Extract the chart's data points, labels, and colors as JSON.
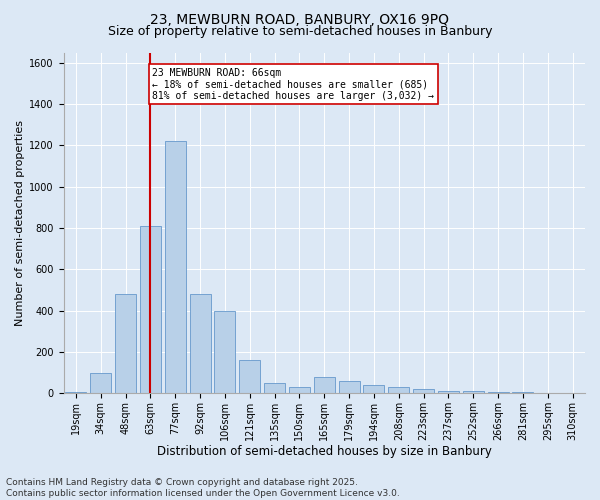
{
  "title1": "23, MEWBURN ROAD, BANBURY, OX16 9PQ",
  "title2": "Size of property relative to semi-detached houses in Banbury",
  "xlabel": "Distribution of semi-detached houses by size in Banbury",
  "ylabel": "Number of semi-detached properties",
  "categories": [
    "19sqm",
    "34sqm",
    "48sqm",
    "63sqm",
    "77sqm",
    "92sqm",
    "106sqm",
    "121sqm",
    "135sqm",
    "150sqm",
    "165sqm",
    "179sqm",
    "194sqm",
    "208sqm",
    "223sqm",
    "237sqm",
    "252sqm",
    "266sqm",
    "281sqm",
    "295sqm",
    "310sqm"
  ],
  "values": [
    5,
    100,
    480,
    810,
    1220,
    480,
    400,
    160,
    50,
    30,
    80,
    60,
    40,
    30,
    20,
    10,
    10,
    5,
    5,
    3,
    2
  ],
  "bar_color": "#b8d0e8",
  "bar_edge_color": "#6699cc",
  "vline_x_index": 3,
  "vline_color": "#cc0000",
  "annotation_text": "23 MEWBURN ROAD: 66sqm\n← 18% of semi-detached houses are smaller (685)\n81% of semi-detached houses are larger (3,032) →",
  "annotation_box_color": "#ffffff",
  "annotation_box_edge": "#cc0000",
  "ylim": [
    0,
    1650
  ],
  "yticks": [
    0,
    200,
    400,
    600,
    800,
    1000,
    1200,
    1400,
    1600
  ],
  "footnote": "Contains HM Land Registry data © Crown copyright and database right 2025.\nContains public sector information licensed under the Open Government Licence v3.0.",
  "background_color": "#dce8f5",
  "plot_bg_color": "#dce8f5",
  "title1_fontsize": 10,
  "title2_fontsize": 9,
  "xlabel_fontsize": 8.5,
  "ylabel_fontsize": 8,
  "tick_fontsize": 7,
  "footnote_fontsize": 6.5,
  "ann_fontsize": 7
}
